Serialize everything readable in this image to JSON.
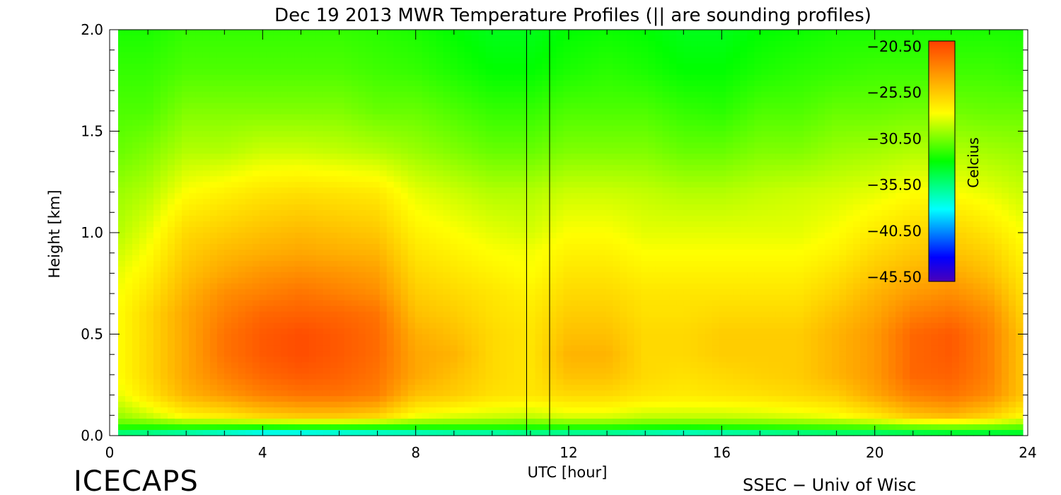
{
  "chart_data": {
    "type": "heatmap",
    "title": "Dec 19 2013 MWR Temperature Profiles (|| are sounding profiles)",
    "xlabel": "UTC [hour]",
    "ylabel": "Height [km]",
    "xlim": [
      0,
      24
    ],
    "ylim": [
      0,
      2.0
    ],
    "x_ticks": [
      0,
      4,
      8,
      12,
      16,
      20,
      24
    ],
    "x_tick_labels": [
      "0",
      "4",
      "8",
      "12",
      "16",
      "20",
      "24"
    ],
    "y_ticks": [
      0.0,
      0.5,
      1.0,
      1.5,
      2.0
    ],
    "y_tick_labels": [
      "0.0",
      "0.5",
      "1.0",
      "1.5",
      "2.0"
    ],
    "colorbar": {
      "label": "Celcius",
      "min": -45.5,
      "max": -20.5,
      "tick_values": [
        -20.5,
        -25.5,
        -30.5,
        -35.5,
        -40.5,
        -45.5
      ],
      "tick_labels": [
        "−20.50",
        "−25.50",
        "−30.50",
        "−35.50",
        "−40.50",
        "−45.50"
      ],
      "colormap": [
        "#4b00b8",
        "#0000ff",
        "#0080ff",
        "#00ffff",
        "#00ff80",
        "#00ff00",
        "#80ff00",
        "#ffff00",
        "#ffc000",
        "#ff8000",
        "#ff4000"
      ]
    },
    "sounding_times": [
      10.9,
      11.5
    ],
    "rows_heights": [
      0.0,
      0.05,
      0.1,
      0.2,
      0.3,
      0.4,
      0.5,
      0.6,
      0.7,
      0.8,
      0.9,
      1.0,
      1.2,
      1.4,
      1.6,
      1.8,
      2.0
    ],
    "cols_hours": [
      0.2,
      1,
      2,
      3,
      4,
      5,
      6,
      7,
      8,
      9,
      10,
      11,
      12,
      13,
      14,
      15,
      16,
      17,
      18,
      19,
      20,
      21,
      22,
      23,
      23.8
    ],
    "values": [
      [
        -36.5,
        -37.0,
        -38.0,
        -39.0,
        -40.0,
        -40.0,
        -39.5,
        -39.0,
        -38.5,
        -38.0,
        -38.0,
        -37.0,
        -37.5,
        -37.5,
        -38.0,
        -38.5,
        -38.0,
        -37.5,
        -37.0,
        -36.5,
        -36.5,
        -36.0,
        -35.5,
        -35.5,
        -35.0
      ],
      [
        -31.5,
        -31.5,
        -31.0,
        -31.0,
        -31.0,
        -30.8,
        -30.8,
        -31.0,
        -31.2,
        -31.2,
        -31.2,
        -31.5,
        -31.2,
        -31.2,
        -31.4,
        -31.4,
        -31.3,
        -31.2,
        -31.0,
        -30.8,
        -30.5,
        -30.0,
        -29.8,
        -30.0,
        -30.5
      ],
      [
        -30.0,
        -29.0,
        -27.5,
        -27.0,
        -26.0,
        -25.5,
        -25.5,
        -26.0,
        -28.0,
        -28.5,
        -28.8,
        -29.0,
        -28.5,
        -28.5,
        -29.0,
        -29.0,
        -29.0,
        -28.8,
        -28.5,
        -28.0,
        -27.0,
        -25.5,
        -25.0,
        -26.0,
        -27.5
      ],
      [
        -28.5,
        -27.0,
        -25.0,
        -24.0,
        -23.0,
        -22.5,
        -22.5,
        -23.0,
        -25.5,
        -26.0,
        -26.8,
        -27.0,
        -26.5,
        -26.5,
        -27.0,
        -27.2,
        -27.0,
        -26.8,
        -26.5,
        -26.0,
        -24.5,
        -23.0,
        -22.5,
        -23.5,
        -25.5
      ],
      [
        -28.0,
        -26.5,
        -24.5,
        -23.0,
        -22.0,
        -21.5,
        -21.8,
        -22.5,
        -24.5,
        -25.5,
        -26.5,
        -27.0,
        -25.5,
        -25.5,
        -26.5,
        -26.8,
        -26.5,
        -26.2,
        -26.0,
        -25.0,
        -24.0,
        -22.0,
        -21.8,
        -23.0,
        -25.5
      ],
      [
        -28.0,
        -26.5,
        -24.5,
        -22.5,
        -21.5,
        -21.0,
        -21.5,
        -22.2,
        -24.5,
        -25.0,
        -26.5,
        -27.0,
        -25.0,
        -25.0,
        -26.5,
        -26.5,
        -26.0,
        -26.0,
        -26.0,
        -25.0,
        -24.0,
        -22.0,
        -21.5,
        -23.0,
        -25.5
      ],
      [
        -28.0,
        -26.5,
        -24.5,
        -22.5,
        -21.5,
        -21.0,
        -21.5,
        -22.2,
        -24.8,
        -25.5,
        -26.5,
        -27.0,
        -25.5,
        -25.5,
        -26.5,
        -26.5,
        -26.0,
        -26.0,
        -26.0,
        -25.0,
        -24.0,
        -22.0,
        -21.5,
        -23.0,
        -25.5
      ],
      [
        -28.0,
        -26.5,
        -24.5,
        -23.0,
        -22.0,
        -21.8,
        -22.0,
        -22.5,
        -25.5,
        -26.0,
        -26.8,
        -27.2,
        -26.0,
        -26.0,
        -26.8,
        -26.8,
        -26.5,
        -26.5,
        -26.5,
        -25.5,
        -24.5,
        -23.0,
        -22.5,
        -23.5,
        -26.0
      ],
      [
        -28.2,
        -27.0,
        -25.0,
        -23.5,
        -23.0,
        -22.5,
        -23.0,
        -23.5,
        -26.0,
        -26.5,
        -27.0,
        -27.5,
        -26.5,
        -26.5,
        -27.0,
        -27.0,
        -27.0,
        -27.0,
        -27.0,
        -26.2,
        -25.0,
        -24.0,
        -23.5,
        -24.5,
        -26.5
      ],
      [
        -28.5,
        -27.5,
        -25.5,
        -24.5,
        -23.8,
        -23.5,
        -23.8,
        -24.2,
        -26.5,
        -27.0,
        -27.5,
        -28.0,
        -27.0,
        -27.0,
        -27.5,
        -27.5,
        -27.5,
        -27.5,
        -27.5,
        -26.8,
        -25.8,
        -25.0,
        -24.5,
        -25.5,
        -27.0
      ],
      [
        -29.0,
        -28.0,
        -26.0,
        -25.2,
        -24.8,
        -24.5,
        -24.8,
        -25.0,
        -27.0,
        -27.5,
        -28.0,
        -28.2,
        -27.5,
        -27.5,
        -28.0,
        -28.0,
        -28.0,
        -28.0,
        -28.0,
        -27.5,
        -26.5,
        -25.8,
        -25.5,
        -26.2,
        -27.5
      ],
      [
        -29.5,
        -28.5,
        -26.5,
        -26.0,
        -25.5,
        -25.2,
        -25.5,
        -25.8,
        -27.5,
        -28.0,
        -28.5,
        -28.8,
        -28.0,
        -28.0,
        -28.5,
        -28.5,
        -28.5,
        -28.5,
        -28.5,
        -28.0,
        -27.2,
        -26.5,
        -26.2,
        -27.0,
        -28.0
      ],
      [
        -30.0,
        -29.5,
        -28.0,
        -27.5,
        -27.0,
        -26.8,
        -27.0,
        -27.2,
        -28.5,
        -29.0,
        -29.5,
        -29.5,
        -29.0,
        -29.0,
        -29.2,
        -29.5,
        -29.5,
        -29.2,
        -29.0,
        -28.8,
        -28.5,
        -28.0,
        -28.0,
        -28.5,
        -29.0
      ],
      [
        -31.0,
        -30.5,
        -29.5,
        -29.5,
        -29.0,
        -29.0,
        -29.2,
        -29.5,
        -30.0,
        -30.5,
        -31.0,
        -31.0,
        -30.5,
        -30.5,
        -30.5,
        -31.0,
        -31.0,
        -30.5,
        -30.5,
        -30.0,
        -29.8,
        -29.5,
        -29.5,
        -29.8,
        -30.0
      ],
      [
        -31.5,
        -31.5,
        -30.5,
        -30.5,
        -30.5,
        -30.5,
        -30.5,
        -31.0,
        -31.0,
        -31.5,
        -32.0,
        -32.0,
        -31.5,
        -31.5,
        -31.5,
        -32.0,
        -32.2,
        -31.5,
        -31.5,
        -31.0,
        -31.0,
        -30.8,
        -30.8,
        -31.0,
        -31.0
      ],
      [
        -32.0,
        -32.0,
        -31.5,
        -31.5,
        -31.5,
        -31.5,
        -31.5,
        -31.8,
        -32.0,
        -32.5,
        -33.0,
        -33.0,
        -32.5,
        -32.2,
        -32.5,
        -33.0,
        -33.0,
        -32.5,
        -32.2,
        -32.0,
        -31.8,
        -31.8,
        -31.8,
        -31.8,
        -32.0
      ],
      [
        -32.5,
        -32.5,
        -32.0,
        -32.0,
        -32.0,
        -32.0,
        -32.0,
        -32.2,
        -32.5,
        -33.0,
        -33.5,
        -33.5,
        -33.0,
        -32.8,
        -33.0,
        -33.5,
        -33.5,
        -33.0,
        -32.8,
        -32.5,
        -32.5,
        -32.5,
        -32.5,
        -32.5,
        -32.5
      ]
    ]
  },
  "brand": "ICECAPS",
  "credit": "SSEC − Univ of Wisc"
}
